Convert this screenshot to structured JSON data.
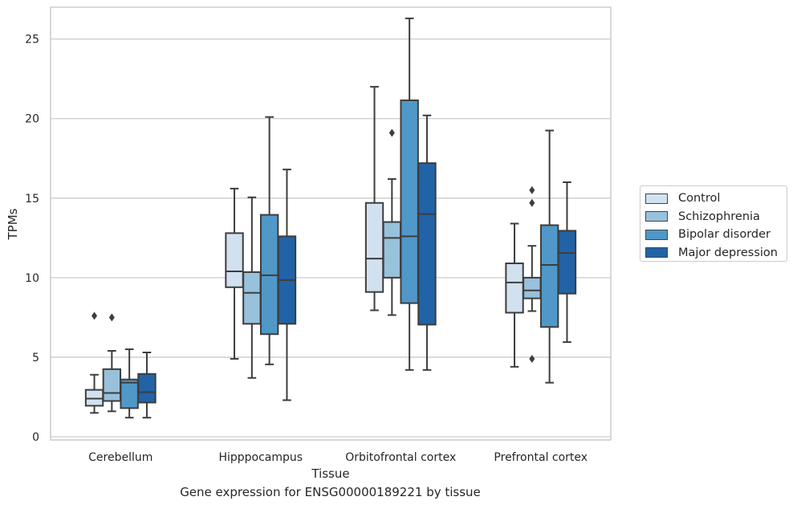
{
  "chart_data": {
    "type": "box",
    "caption": "Gene expression for ENSG00000189221 by tissue",
    "xlabel": "Tissue",
    "ylabel": "TPMs",
    "ylim": [
      -0.2,
      27.0
    ],
    "yticks": [
      0,
      5,
      10,
      15,
      20,
      25
    ],
    "grid": "horizontal",
    "legend_position": "right",
    "categories": [
      "Cerebellum",
      "Hipppocampus",
      "Orbitofrontal cortex",
      "Prefrontal cortex"
    ],
    "series": [
      {
        "name": "Control",
        "color": "#d1e1f0",
        "boxes": [
          {
            "whisker_low": 1.5,
            "q1": 1.95,
            "median": 2.4,
            "q3": 2.95,
            "whisker_high": 3.9,
            "outliers": [
              7.6
            ]
          },
          {
            "whisker_low": 4.9,
            "q1": 9.4,
            "median": 10.4,
            "q3": 12.8,
            "whisker_high": 15.6,
            "outliers": []
          },
          {
            "whisker_low": 7.95,
            "q1": 9.1,
            "median": 11.2,
            "q3": 14.7,
            "whisker_high": 22.0,
            "outliers": []
          },
          {
            "whisker_low": 4.4,
            "q1": 7.8,
            "median": 9.7,
            "q3": 10.9,
            "whisker_high": 13.4,
            "outliers": []
          }
        ]
      },
      {
        "name": "Schizophrenia",
        "color": "#98c1db",
        "boxes": [
          {
            "whisker_low": 1.6,
            "q1": 2.25,
            "median": 2.75,
            "q3": 4.25,
            "whisker_high": 5.4,
            "outliers": [
              7.5
            ]
          },
          {
            "whisker_low": 3.7,
            "q1": 7.1,
            "median": 9.05,
            "q3": 10.35,
            "whisker_high": 15.05,
            "outliers": []
          },
          {
            "whisker_low": 7.65,
            "q1": 10.0,
            "median": 12.5,
            "q3": 13.5,
            "whisker_high": 16.2,
            "outliers": [
              19.1
            ]
          },
          {
            "whisker_low": 7.9,
            "q1": 8.7,
            "median": 9.2,
            "q3": 10.0,
            "whisker_high": 12.0,
            "outliers": [
              15.5,
              14.7,
              4.9
            ]
          }
        ]
      },
      {
        "name": "Bipolar disorder",
        "color": "#5098c7",
        "boxes": [
          {
            "whisker_low": 1.2,
            "q1": 1.8,
            "median": 3.4,
            "q3": 3.6,
            "whisker_high": 5.5,
            "outliers": []
          },
          {
            "whisker_low": 4.55,
            "q1": 6.45,
            "median": 10.15,
            "q3": 13.95,
            "whisker_high": 20.1,
            "outliers": []
          },
          {
            "whisker_low": 4.2,
            "q1": 8.4,
            "median": 12.6,
            "q3": 21.15,
            "whisker_high": 26.3,
            "outliers": []
          },
          {
            "whisker_low": 3.4,
            "q1": 6.9,
            "median": 10.8,
            "q3": 13.3,
            "whisker_high": 19.25,
            "outliers": []
          }
        ]
      },
      {
        "name": "Major depression",
        "color": "#2163a6",
        "boxes": [
          {
            "whisker_low": 1.2,
            "q1": 2.15,
            "median": 2.8,
            "q3": 3.95,
            "whisker_high": 5.3,
            "outliers": []
          },
          {
            "whisker_low": 2.3,
            "q1": 7.1,
            "median": 9.85,
            "q3": 12.6,
            "whisker_high": 16.8,
            "outliers": []
          },
          {
            "whisker_low": 4.2,
            "q1": 7.05,
            "median": 14.0,
            "q3": 17.2,
            "whisker_high": 20.2,
            "outliers": []
          },
          {
            "whisker_low": 5.95,
            "q1": 9.0,
            "median": 11.55,
            "q3": 12.95,
            "whisker_high": 16.0,
            "outliers": []
          }
        ]
      }
    ]
  }
}
